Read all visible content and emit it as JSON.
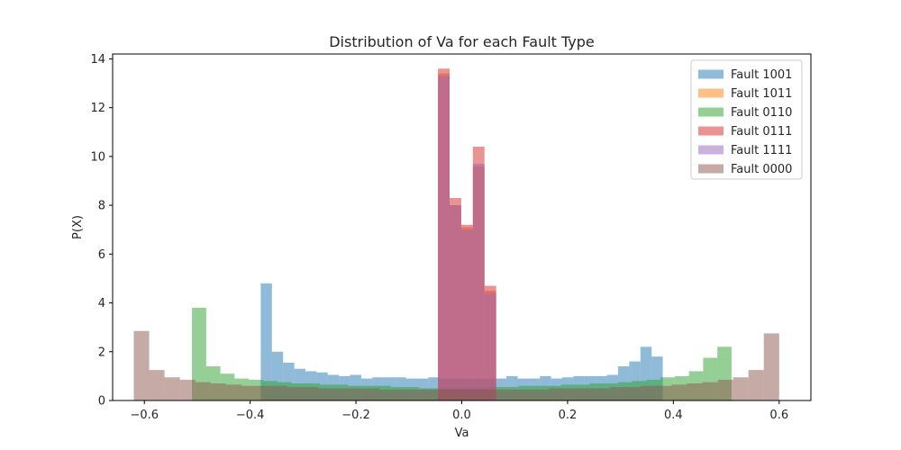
{
  "chart_data": {
    "type": "histogram",
    "title": "Distribution of Va for each Fault Type",
    "xlabel": "Va",
    "ylabel": "P(X)",
    "xlim": [
      -0.66,
      0.66
    ],
    "ylim": [
      0,
      14.2
    ],
    "xticks": [
      -0.6,
      -0.4,
      -0.2,
      0.0,
      0.2,
      0.4,
      0.6
    ],
    "xtick_labels": [
      "−0.6",
      "−0.4",
      "−0.2",
      "0.0",
      "0.2",
      "0.4",
      "0.6"
    ],
    "yticks": [
      0,
      2,
      4,
      6,
      8,
      10,
      12,
      14
    ],
    "ytick_labels": [
      "0",
      "2",
      "4",
      "6",
      "8",
      "10",
      "12",
      "14"
    ],
    "grid": false,
    "legend_position": "top-right",
    "alpha": 0.5,
    "series": [
      {
        "name": "Fault 1001",
        "color": "#1f77b4",
        "range": [
          -0.38,
          0.38
        ],
        "density": [
          4.8,
          2.0,
          1.55,
          1.3,
          1.2,
          1.15,
          1.05,
          1.0,
          1.05,
          0.9,
          0.95,
          0.95,
          0.95,
          0.9,
          0.9,
          0.95,
          0.9,
          0.9,
          0.9,
          0.9,
          0.9,
          0.9,
          1.0,
          0.9,
          0.9,
          1.0,
          0.9,
          0.95,
          1.0,
          1.0,
          1.0,
          1.05,
          1.4,
          1.6,
          2.2,
          1.8
        ]
      },
      {
        "name": "Fault 1011",
        "color": "#ff7f0e",
        "range": [
          -0.045,
          0.065
        ],
        "density": [
          13.4,
          8.0,
          7.1,
          9.6,
          4.5
        ]
      },
      {
        "name": "Fault 0110",
        "color": "#2ca02c",
        "range": [
          -0.51,
          0.51
        ],
        "density": [
          3.8,
          1.4,
          1.1,
          0.9,
          0.85,
          0.8,
          0.75,
          0.7,
          0.7,
          0.65,
          0.65,
          0.6,
          0.6,
          0.6,
          0.55,
          0.55,
          0.5,
          0.5,
          0.5,
          0.5,
          0.5,
          0.55,
          0.55,
          0.6,
          0.6,
          0.6,
          0.65,
          0.65,
          0.7,
          0.7,
          0.75,
          0.8,
          0.85,
          0.95,
          1.0,
          1.2,
          1.75,
          2.2
        ]
      },
      {
        "name": "Fault 0111",
        "color": "#d62728",
        "range": [
          -0.045,
          0.065
        ],
        "density": [
          13.6,
          8.3,
          7.2,
          10.4,
          4.7
        ]
      },
      {
        "name": "Fault 1111",
        "color": "#9467bd",
        "range": [
          -0.045,
          0.065
        ],
        "density": [
          13.3,
          8.0,
          7.0,
          9.7,
          4.4
        ]
      },
      {
        "name": "Fault 0000",
        "color": "#8c564b",
        "range": [
          -0.62,
          0.6
        ],
        "density": [
          2.85,
          1.25,
          0.95,
          0.85,
          0.75,
          0.7,
          0.65,
          0.6,
          0.6,
          0.6,
          0.55,
          0.55,
          0.5,
          0.5,
          0.5,
          0.5,
          0.45,
          0.45,
          0.45,
          0.45,
          0.45,
          0.45,
          0.45,
          0.45,
          0.45,
          0.45,
          0.45,
          0.5,
          0.5,
          0.5,
          0.5,
          0.55,
          0.55,
          0.6,
          0.6,
          0.65,
          0.7,
          0.75,
          0.85,
          0.95,
          1.25,
          2.75
        ]
      }
    ]
  }
}
